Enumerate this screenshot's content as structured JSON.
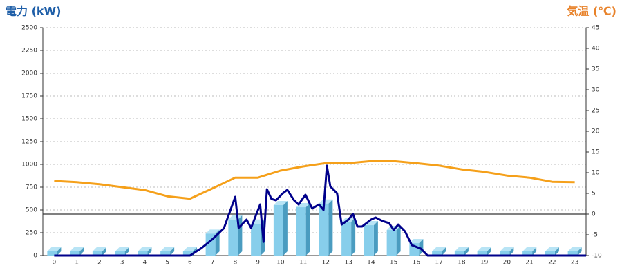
{
  "chart_data": {
    "type": "combo",
    "y_title": "電力 (kW)",
    "y2_title": "気温 (℃)",
    "y_title_color": "#1f5fa8",
    "y2_title_color": "#e8822a",
    "categories": [
      "0",
      "1",
      "2",
      "3",
      "4",
      "5",
      "6",
      "7",
      "8",
      "9",
      "10",
      "11",
      "12",
      "13",
      "14",
      "15",
      "16",
      "17",
      "18",
      "19",
      "20",
      "21",
      "22",
      "23"
    ],
    "xlim": [
      -0.5,
      23.5
    ],
    "ylim": [
      0,
      2500
    ],
    "yticks": [
      0,
      250,
      500,
      750,
      1000,
      1250,
      1500,
      1750,
      2000,
      2250,
      2500
    ],
    "y2lim": [
      -10,
      45
    ],
    "y2ticks": [
      -10,
      -5,
      0,
      5,
      10,
      15,
      20,
      25,
      30,
      35,
      40,
      45
    ],
    "grid": true,
    "series": [
      {
        "type": "bar",
        "color": "#87ceeb",
        "values": [
          0,
          0,
          0,
          0,
          0,
          0,
          45,
          240,
          395,
          350,
          553,
          530,
          570,
          370,
          333,
          280,
          136,
          0,
          0,
          0,
          0,
          0,
          0,
          0
        ]
      },
      {
        "type": "line",
        "color": "#00008b",
        "x": [
          0,
          6,
          6.5,
          7,
          7.5,
          8,
          8.15,
          8.5,
          8.7,
          9.1,
          9.25,
          9.4,
          9.6,
          9.8,
          10.1,
          10.3,
          10.6,
          10.8,
          11.1,
          11.4,
          11.7,
          11.9,
          12.05,
          12.2,
          12.5,
          12.7,
          13,
          13.2,
          13.4,
          13.6,
          14,
          14.2,
          14.5,
          14.8,
          15,
          15.2,
          15.5,
          15.8,
          16.2,
          16.5,
          23.5
        ],
        "values": [
          0,
          0,
          80,
          180,
          300,
          644,
          303,
          394,
          303,
          560,
          150,
          727,
          621,
          606,
          682,
          720,
          606,
          560,
          667,
          515,
          560,
          500,
          985,
          758,
          682,
          340,
          394,
          455,
          318,
          318,
          394,
          417,
          379,
          356,
          280,
          340,
          265,
          114,
          76,
          0,
          0
        ]
      },
      {
        "type": "line",
        "axis": "y2",
        "color": "#f5a01a",
        "values": [
          8,
          7.7,
          7.2,
          6.5,
          5.8,
          4.3,
          3.7,
          6.2,
          8.8,
          8.8,
          10.5,
          11.5,
          12.3,
          12.3,
          12.8,
          12.8,
          12.3,
          11.7,
          10.8,
          10.2,
          9.3,
          8.8,
          7.8,
          7.7
        ]
      }
    ]
  }
}
